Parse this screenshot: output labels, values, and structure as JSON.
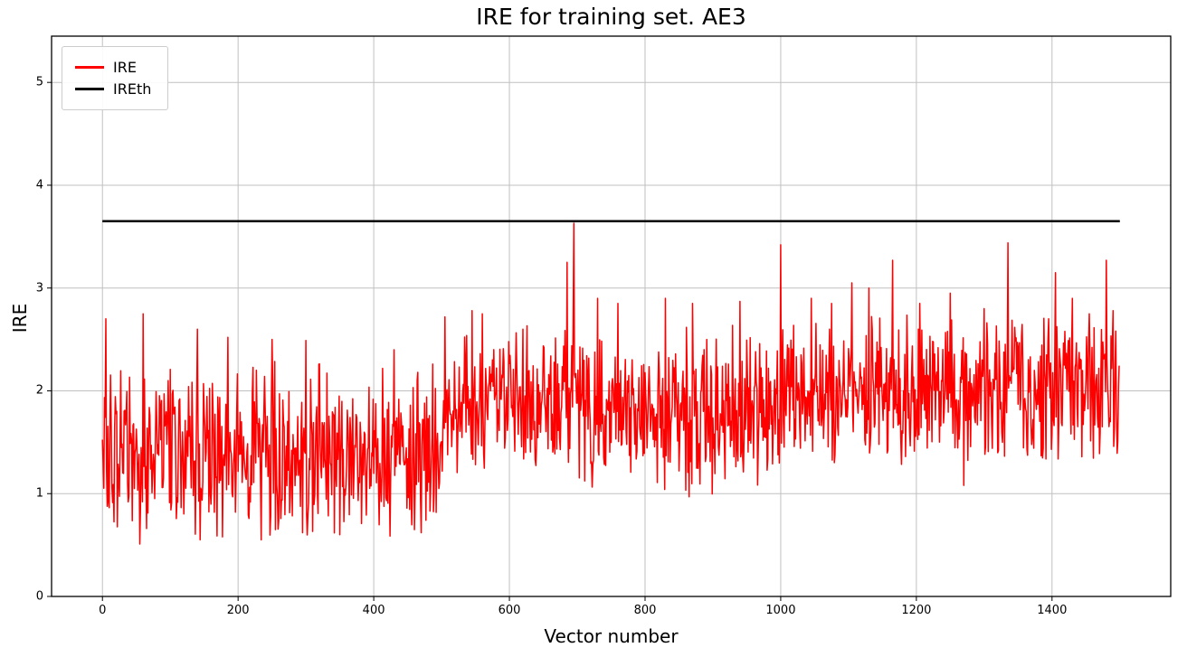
{
  "chart_data": {
    "type": "line",
    "title": "IRE for training set. AE3",
    "xlabel": "Vector number",
    "ylabel": "IRE",
    "xlim": [
      -75,
      1575
    ],
    "ylim": [
      0,
      5.45
    ],
    "xticks": [
      0,
      200,
      400,
      600,
      800,
      1000,
      1200,
      1400
    ],
    "yticks": [
      0,
      1,
      2,
      3,
      4,
      5
    ],
    "grid": true,
    "grid_color": "#c0c0c0",
    "background": "#ffffff",
    "legend": {
      "position": "upper left",
      "items": [
        {
          "label": "IRE",
          "color": "#ff0000"
        },
        {
          "label": "IREth",
          "color": "#000000"
        }
      ]
    },
    "series": [
      {
        "name": "IRE",
        "color": "#ff0000",
        "style": "noisy_line",
        "n": 1500,
        "seed": 20,
        "segments": [
          {
            "from": 0,
            "to": 500,
            "mean": 1.4,
            "std": 0.38,
            "min": 0.55,
            "max": 2.6
          },
          {
            "from": 500,
            "to": 700,
            "mean": 1.9,
            "std": 0.33,
            "min": 1.05,
            "max": 2.8
          },
          {
            "from": 700,
            "to": 1000,
            "mean": 1.82,
            "std": 0.36,
            "min": 0.95,
            "max": 2.9
          },
          {
            "from": 1000,
            "to": 1500,
            "mean": 2.0,
            "std": 0.34,
            "min": 1.05,
            "max": 3.0
          }
        ],
        "peaks": [
          [
            5,
            2.7
          ],
          [
            55,
            0.51
          ],
          [
            60,
            2.75
          ],
          [
            140,
            2.6
          ],
          [
            185,
            2.52
          ],
          [
            250,
            2.5
          ],
          [
            255,
            0.65
          ],
          [
            295,
            0.62
          ],
          [
            300,
            2.49
          ],
          [
            350,
            0.6
          ],
          [
            430,
            2.4
          ],
          [
            470,
            0.62
          ],
          [
            505,
            2.72
          ],
          [
            545,
            2.78
          ],
          [
            560,
            2.75
          ],
          [
            620,
            2.6
          ],
          [
            685,
            3.25
          ],
          [
            695,
            3.63
          ],
          [
            730,
            2.9
          ],
          [
            760,
            2.85
          ],
          [
            830,
            2.9
          ],
          [
            865,
            0.97
          ],
          [
            870,
            2.85
          ],
          [
            940,
            2.87
          ],
          [
            1000,
            3.42
          ],
          [
            1045,
            2.9
          ],
          [
            1075,
            2.85
          ],
          [
            1105,
            3.05
          ],
          [
            1130,
            3.0
          ],
          [
            1165,
            3.27
          ],
          [
            1205,
            2.85
          ],
          [
            1250,
            2.95
          ],
          [
            1270,
            1.08
          ],
          [
            1300,
            2.8
          ],
          [
            1335,
            3.44
          ],
          [
            1405,
            3.15
          ],
          [
            1430,
            2.9
          ],
          [
            1455,
            2.75
          ],
          [
            1480,
            3.27
          ],
          [
            1490,
            2.78
          ]
        ]
      },
      {
        "name": "IREth",
        "color": "#000000",
        "style": "hline",
        "value": 3.65,
        "x_start": 0,
        "x_end": 1500
      }
    ]
  }
}
